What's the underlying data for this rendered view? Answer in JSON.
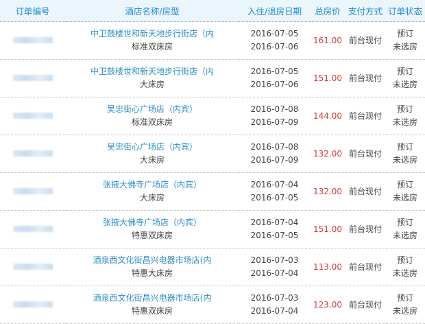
{
  "headers": [
    "订单编号",
    "酒店名称/房型",
    "入住/退房日期",
    "总房价",
    "支付方式",
    "订单状态"
  ],
  "colors": {
    "header_text": "#1b8fd2",
    "hotel": "#2b8fc8",
    "price": "#d23b3b"
  },
  "rows": [
    {
      "hotel": "中卫鼓楼世和新天地步行街店（内",
      "room": "标准双床房",
      "checkin": "2016-07-05",
      "checkout": "2016-07-06",
      "price": "161.00",
      "pay": "前台现付",
      "status1": "预订",
      "status2": "未选房"
    },
    {
      "hotel": "中卫鼓楼世和新天地步行街店（内",
      "room": "大床房",
      "checkin": "2016-07-05",
      "checkout": "2016-07-06",
      "price": "151.00",
      "pay": "前台现付",
      "status1": "预订",
      "status2": "未选房"
    },
    {
      "hotel": "吴忠街心广场店（内宾）",
      "room": "标准双床房",
      "checkin": "2016-07-08",
      "checkout": "2016-07-09",
      "price": "144.00",
      "pay": "前台现付",
      "status1": "预订",
      "status2": "未选房"
    },
    {
      "hotel": "吴忠街心广场店（内宾）",
      "room": "大床房",
      "checkin": "2016-07-08",
      "checkout": "2016-07-09",
      "price": "132.00",
      "pay": "前台现付",
      "status1": "预订",
      "status2": "未选房"
    },
    {
      "hotel": "张掖大佛寺广场店（内宾）",
      "room": "大床房",
      "checkin": "2016-07-04",
      "checkout": "2016-07-05",
      "price": "132.00",
      "pay": "前台现付",
      "status1": "预订",
      "status2": "未选房"
    },
    {
      "hotel": "张掖大佛寺广场店（内宾）",
      "room": "特惠双床房",
      "checkin": "2016-07-04",
      "checkout": "2016-07-05",
      "price": "151.00",
      "pay": "前台现付",
      "status1": "预订",
      "status2": "未选房"
    },
    {
      "hotel": "酒泉西文化街昌兴电器市场店(内",
      "room": "特惠大床房",
      "checkin": "2016-07-03",
      "checkout": "2016-07-04",
      "price": "113.00",
      "pay": "前台现付",
      "status1": "预订",
      "status2": "未选房"
    },
    {
      "hotel": "酒泉西文化街昌兴电器市场店(内",
      "room": "特惠双床房",
      "checkin": "2016-07-03",
      "checkout": "2016-07-04",
      "price": "123.00",
      "pay": "前台现付",
      "status1": "预订",
      "status2": "未选房"
    }
  ]
}
